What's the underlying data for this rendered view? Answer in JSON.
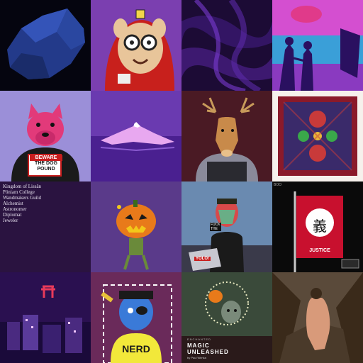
{
  "grid": {
    "tiles": [
      {
        "id": "blue-rock",
        "caption": ""
      },
      {
        "id": "arthur-hoodie",
        "caption": ""
      },
      {
        "id": "purple-smoke",
        "caption": ""
      },
      {
        "id": "couple-sunset",
        "caption": ""
      },
      {
        "id": "dog-pound",
        "caption": ""
      },
      {
        "id": "purple-mountain",
        "caption": ""
      },
      {
        "id": "deer-hoodie",
        "caption": ""
      },
      {
        "id": "red-tapestry",
        "caption": ""
      },
      {
        "id": "titles-list",
        "caption": ""
      },
      {
        "id": "pumpkin-head",
        "caption": ""
      },
      {
        "id": "laptop-guy",
        "caption": ""
      },
      {
        "id": "justice-flag",
        "caption": ""
      },
      {
        "id": "night-city",
        "caption": ""
      },
      {
        "id": "nerd-character",
        "caption": ""
      },
      {
        "id": "magic-unleashed",
        "caption": ""
      },
      {
        "id": "nude-figure",
        "caption": ""
      }
    ]
  },
  "dog_tile": {
    "sign_line1": "BEWARE",
    "sign_line2": "THE DOG",
    "sign_line3": "POUND"
  },
  "titles_tile": {
    "items": [
      "Kingdom of Lissän",
      "Pöniam College",
      "Wandmakers Guild",
      "Alchemist",
      "Astronomer",
      "Diplomat",
      "Jeweler"
    ]
  },
  "laptop_tile": {
    "sticker1": "FUCK THE",
    "sticker2": "YOLO!"
  },
  "justice_tile": {
    "glyph": "義",
    "caption": "JUSTICE",
    "corner_text": "BOO"
  },
  "nerd_tile": {
    "shirt_text": "NERD"
  },
  "magic_tile": {
    "title_line1": "MAGIC",
    "title_line2": "UNLEASHED",
    "byline": "by Paul Wenka",
    "small_caption": "ENCHANTED"
  },
  "colors": {
    "accent_purple": "#5a2d8a",
    "flag_red": "#c8102e"
  }
}
